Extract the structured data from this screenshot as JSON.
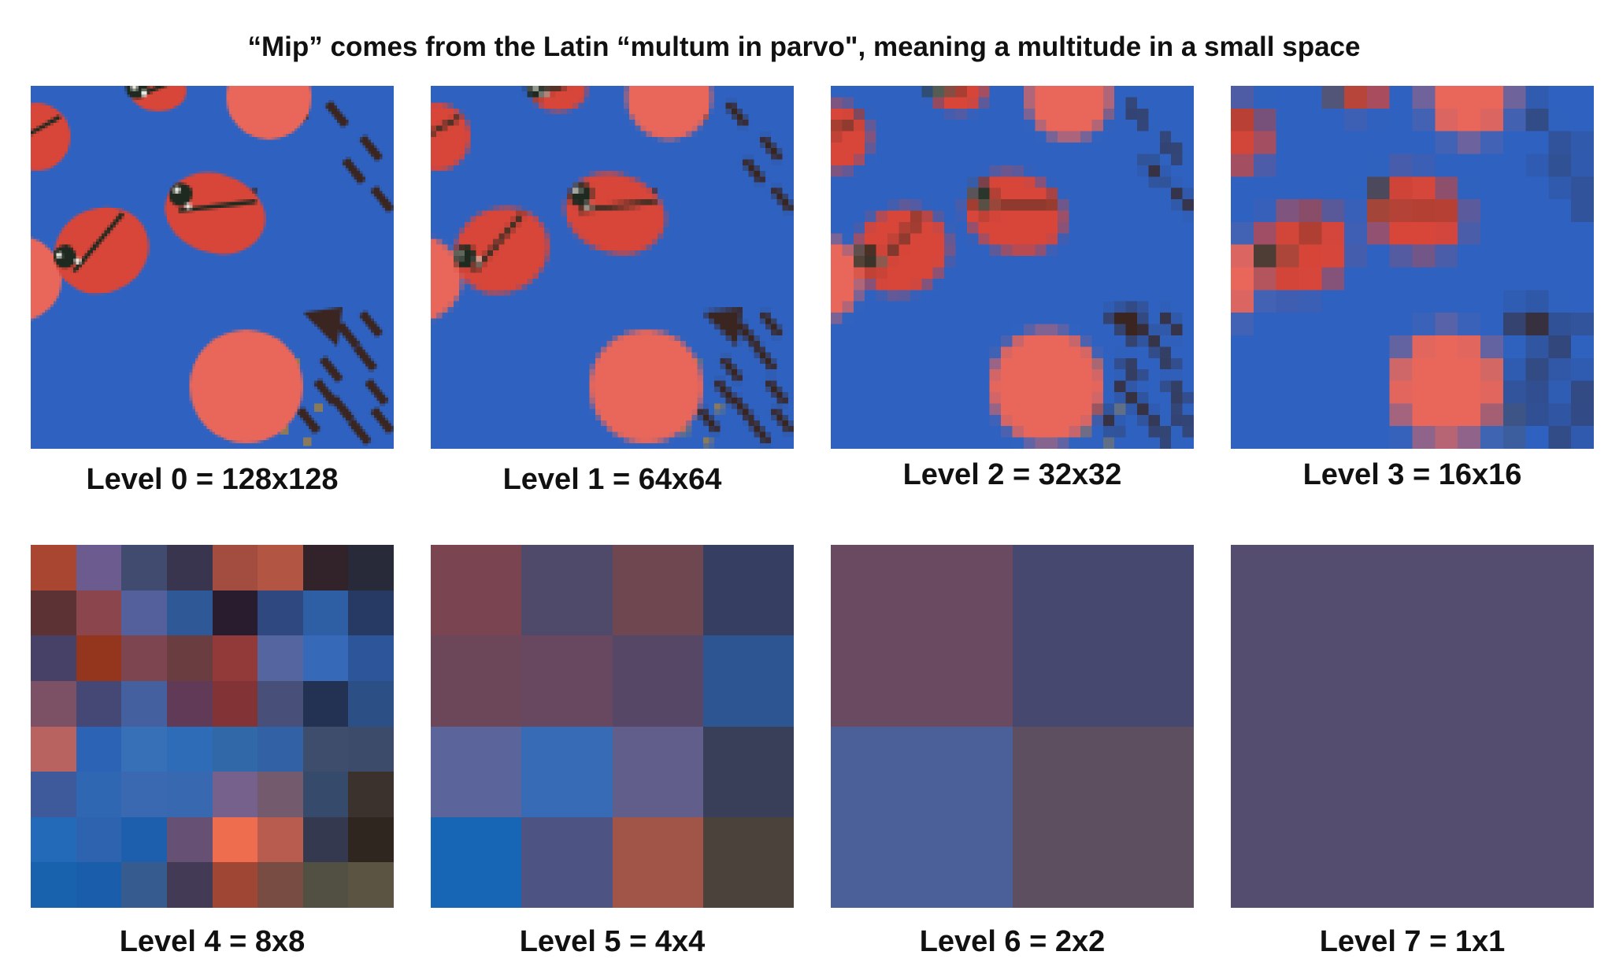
{
  "title": "“Mip” comes from the Latin “multum in parvo\", meaning a multitude in a small space",
  "levels": [
    {
      "label": "Level 0 = 128x128",
      "size": 128
    },
    {
      "label": "Level 1 = 64x64",
      "size": 64
    },
    {
      "label": "Level 2 = 32x32",
      "size": 32
    },
    {
      "label": "Level 3 = 16x16",
      "size": 16
    },
    {
      "label": "Level 4 = 8x8",
      "size": 8,
      "colors": [
        "#a84632",
        "#6c5b8f",
        "#414b70",
        "#39354f",
        "#a24d3f",
        "#b25643",
        "#32232a",
        "#282a39",
        "#5c3234",
        "#8a454d",
        "#53609c",
        "#2e5896",
        "#281c2e",
        "#304880",
        "#2e5fa4",
        "#273a63",
        "#474168",
        "#94361e",
        "#7d454f",
        "#6a3d40",
        "#913a39",
        "#5565a0",
        "#3669b7",
        "#2d5599",
        "#7c5065",
        "#454775",
        "#45609e",
        "#613a58",
        "#813335",
        "#48507a",
        "#233252",
        "#2c4f85",
        "#b8635f",
        "#2c63b5",
        "#3870b8",
        "#2e6cb8",
        "#3068a8",
        "#3262a5",
        "#3e4d6b",
        "#3c4b6a",
        "#3e5a9b",
        "#2f67b2",
        "#3a69b2",
        "#3869b0",
        "#75618c",
        "#735a6c",
        "#364a6b",
        "#3b312d",
        "#236ab9",
        "#2d63af",
        "#1e5fad",
        "#665174",
        "#ef6d4f",
        "#b85c50",
        "#353950",
        "#302620",
        "#1761ad",
        "#1a5eab",
        "#355b8f",
        "#433b55",
        "#a04634",
        "#794c43",
        "#524f43",
        "#5c5443"
      ]
    },
    {
      "label": "Level 5 = 4x4",
      "size": 4,
      "colors": [
        "#7a4550",
        "#4f4a6a",
        "#6f4750",
        "#363e62",
        "#6b4759",
        "#684860",
        "#564766",
        "#2d5592",
        "#5c659b",
        "#386bb6",
        "#625e8b",
        "#393f59",
        "#1766b5",
        "#4d5483",
        "#a05548",
        "#4b423c"
      ]
    },
    {
      "label": "Level 6 = 2x2",
      "size": 2,
      "colors": [
        "#6a4a61",
        "#46486f",
        "#4b6099",
        "#5d4f60"
      ]
    },
    {
      "label": "Level 7 = 1x1",
      "size": 1,
      "colors": [
        "#554d6f"
      ]
    }
  ],
  "colors": {
    "background": "#2f62c0",
    "ladybug": "#d8463a",
    "cookie": "#e9675a",
    "chocolate": "#3a2520"
  }
}
